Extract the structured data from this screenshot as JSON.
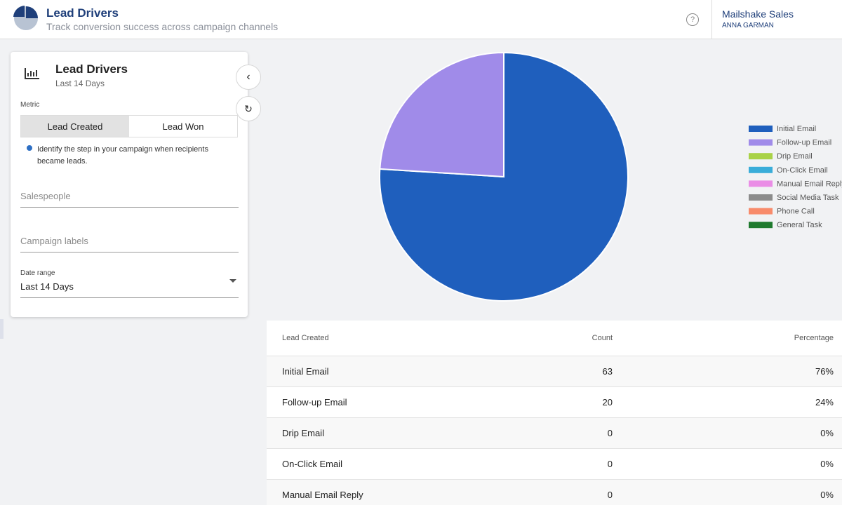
{
  "header": {
    "title": "Lead Drivers",
    "subtitle": "Track conversion success across campaign channels",
    "account": "Mailshake Sales",
    "user": "ANNA GARMAN"
  },
  "sidebar": {
    "title": "Lead Drivers",
    "subtitle": "Last 14 Days",
    "metric_label": "Metric",
    "metric_options": [
      "Lead Created",
      "Lead Won"
    ],
    "help": "Identify the step in your campaign when recipients became leads.",
    "salespeople": "Salespeople",
    "campaign_labels": "Campaign labels",
    "date_range_label": "Date range",
    "date_range_value": "Last 14 Days"
  },
  "chart_data": {
    "type": "pie",
    "categories": [
      "Initial Email",
      "Follow-up Email",
      "Drip Email",
      "On-Click Email",
      "Manual Email Reply",
      "Social Media Task",
      "Phone Call",
      "General Task"
    ],
    "values": [
      76,
      24,
      0,
      0,
      0,
      0,
      0,
      0
    ],
    "colors": [
      "#1f5fbd",
      "#a08be9",
      "#a9d247",
      "#3aadd9",
      "#ea8de6",
      "#8c8c8c",
      "#f88b6b",
      "#1f7a2e"
    ],
    "legend": "right"
  },
  "table": {
    "columns": [
      "Lead Created",
      "Count",
      "Percentage"
    ],
    "rows": [
      [
        "Initial Email",
        63,
        "76%"
      ],
      [
        "Follow-up Email",
        20,
        "24%"
      ],
      [
        "Drip Email",
        0,
        "0%"
      ],
      [
        "On-Click Email",
        0,
        "0%"
      ],
      [
        "Manual Email Reply",
        0,
        "0%"
      ]
    ]
  }
}
